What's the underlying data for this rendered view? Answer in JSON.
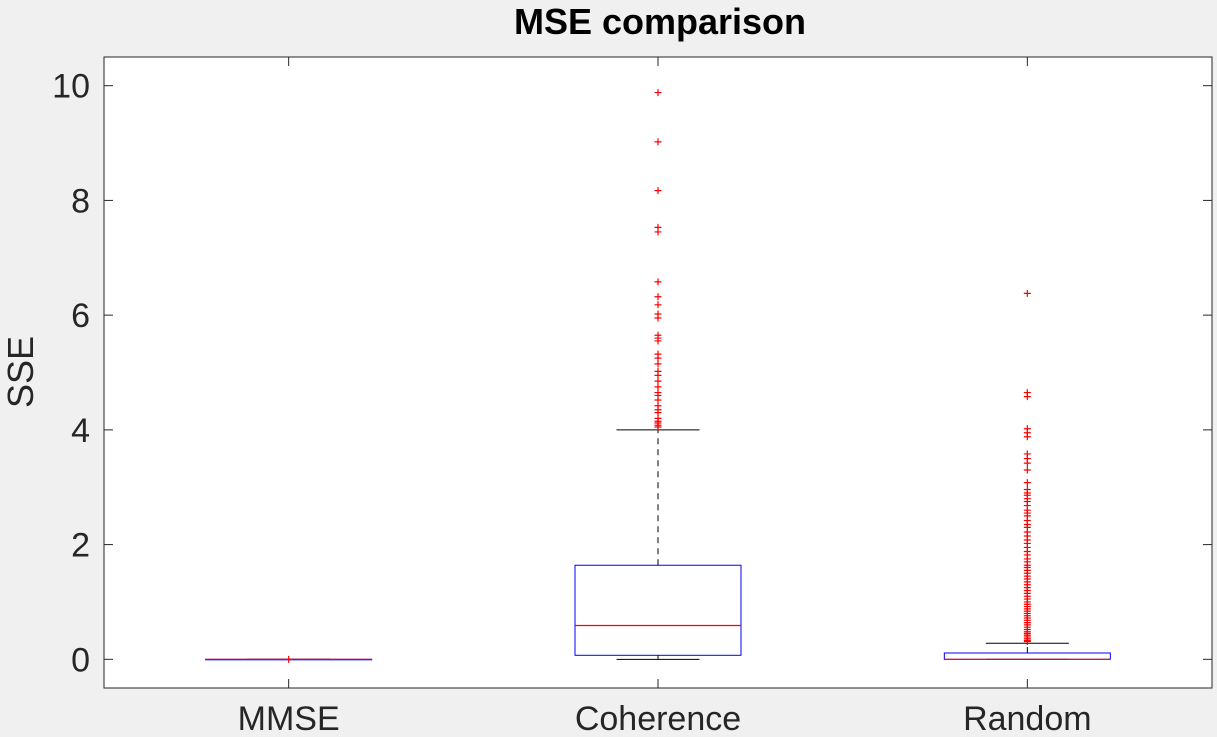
{
  "chart_data": {
    "type": "boxplot",
    "title": "MSE comparison",
    "xlabel": "",
    "ylabel": "SSE",
    "ylim": [
      -0.5,
      10.5
    ],
    "yticks": [
      0,
      2,
      4,
      6,
      8,
      10
    ],
    "grid": false,
    "categories": [
      "MMSE",
      "Coherence",
      "Random"
    ],
    "boxes": [
      {
        "label": "MMSE",
        "whisker_low": 0,
        "q1": 0,
        "median": 0,
        "q3": 0,
        "whisker_high": 0,
        "outliers": [
          0.0
        ]
      },
      {
        "label": "Coherence",
        "whisker_low": 0.0,
        "q1": 0.07,
        "median": 0.59,
        "q3": 1.64,
        "whisker_high": 4.0,
        "outliers": [
          9.88,
          9.02,
          8.17,
          7.53,
          7.45,
          6.58,
          6.32,
          6.18,
          6.02,
          5.95,
          5.65,
          5.6,
          5.55,
          5.32,
          5.25,
          5.15,
          5.02,
          4.95,
          4.85,
          4.75,
          4.65,
          4.6,
          4.52,
          4.42,
          4.35,
          4.3,
          4.2,
          4.15,
          4.12,
          4.08,
          4.05
        ]
      },
      {
        "label": "Random",
        "whisker_low": 0.0,
        "q1": 0.0,
        "median": 0.0,
        "q3": 0.11,
        "whisker_high": 0.28,
        "outliers": [
          6.38,
          4.65,
          4.58,
          4.02,
          3.95,
          3.88,
          3.58,
          3.5,
          3.42,
          3.3,
          3.08,
          2.96,
          2.9,
          2.86,
          2.8,
          2.75,
          2.68,
          2.6,
          2.55,
          2.5,
          2.42,
          2.35,
          2.3,
          2.22,
          2.15,
          2.08,
          2.02,
          1.95,
          1.88,
          1.82,
          1.75,
          1.7,
          1.64,
          1.6,
          1.55,
          1.5,
          1.45,
          1.4,
          1.35,
          1.3,
          1.25,
          1.2,
          1.15,
          1.1,
          1.05,
          1.0,
          0.96,
          0.92,
          0.88,
          0.84,
          0.8,
          0.76,
          0.72,
          0.68,
          0.64,
          0.6,
          0.56,
          0.52,
          0.48,
          0.45,
          0.42,
          0.39,
          0.36,
          0.33,
          0.31
        ]
      }
    ],
    "colors": {
      "box": "#0000ff",
      "median": "#ff0000",
      "outlier": "#ff0000",
      "whisker": "#000000",
      "axes": "#262626",
      "plot_background": "#ffffff",
      "figure_background": "#f0f0f0"
    }
  }
}
